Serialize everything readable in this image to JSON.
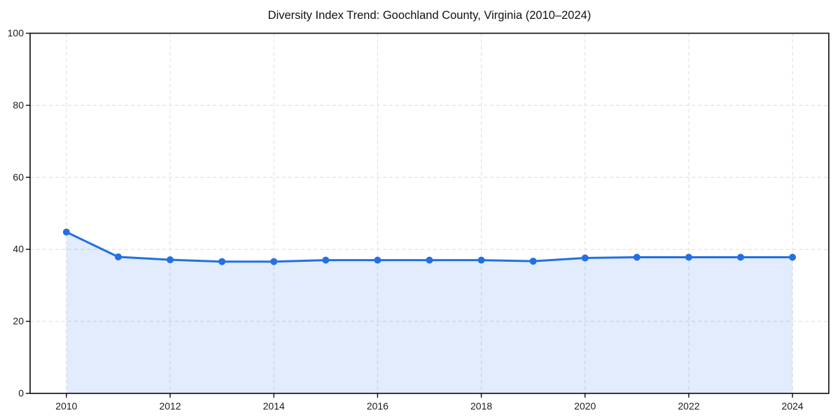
{
  "page_title": "Diversity Index Trend: Goochland County, Virginia (2010–2024)",
  "colors": {
    "line": "#2270e4",
    "marker": "#2270e4",
    "area_fill": "#2270e4",
    "area_opacity": 0.13,
    "grid": "#dcdcdc",
    "spine": "#0a0a0a",
    "tick_text": "#1a1a1a",
    "background": "#ffffff"
  },
  "chart_data": {
    "type": "area",
    "title": "Diversity Index Trend: Goochland County, Virginia (2010–2024)",
    "series_name": "Diversity Index",
    "x": [
      2010,
      2011,
      2012,
      2013,
      2014,
      2015,
      2016,
      2017,
      2018,
      2019,
      2020,
      2021,
      2022,
      2023,
      2024
    ],
    "values": [
      44.8,
      37.9,
      37.1,
      36.6,
      36.6,
      37.0,
      37.0,
      37.0,
      37.0,
      36.7,
      37.6,
      37.8,
      37.8,
      37.8,
      37.8
    ],
    "xlabel": "",
    "ylabel": "",
    "xlim": [
      2009.3,
      2024.7
    ],
    "ylim": [
      0,
      100
    ],
    "xticks": [
      2010,
      2012,
      2014,
      2016,
      2018,
      2020,
      2022,
      2024
    ],
    "yticks": [
      0,
      20,
      40,
      60,
      80,
      100
    ],
    "grid": true,
    "grid_style": "dashed",
    "legend": false,
    "marker": "circle",
    "marker_radius": 5,
    "line_width": 3
  }
}
